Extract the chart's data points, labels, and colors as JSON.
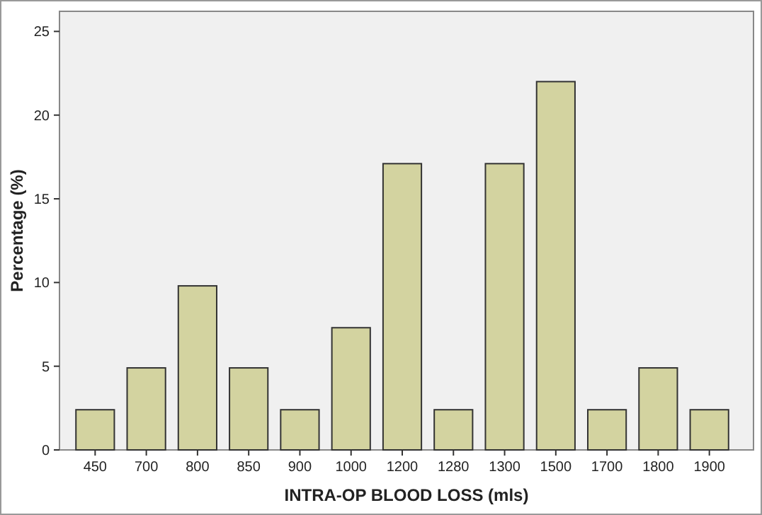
{
  "chart_data": {
    "type": "bar",
    "xlabel": "INTRA-OP BLOOD LOSS (mls)",
    "ylabel": "Percentage (%)",
    "categories": [
      "450",
      "700",
      "800",
      "850",
      "900",
      "1000",
      "1200",
      "1280",
      "1300",
      "1500",
      "1700",
      "1800",
      "1900"
    ],
    "values": [
      2.4,
      4.9,
      9.8,
      4.9,
      2.4,
      7.3,
      17.1,
      2.4,
      17.1,
      22.0,
      2.4,
      4.9,
      2.4
    ],
    "color": "#d3d3a0",
    "ylim": [
      0,
      26.2
    ],
    "yticks": [
      0,
      5,
      10,
      15,
      20,
      25
    ],
    "grid": false
  }
}
